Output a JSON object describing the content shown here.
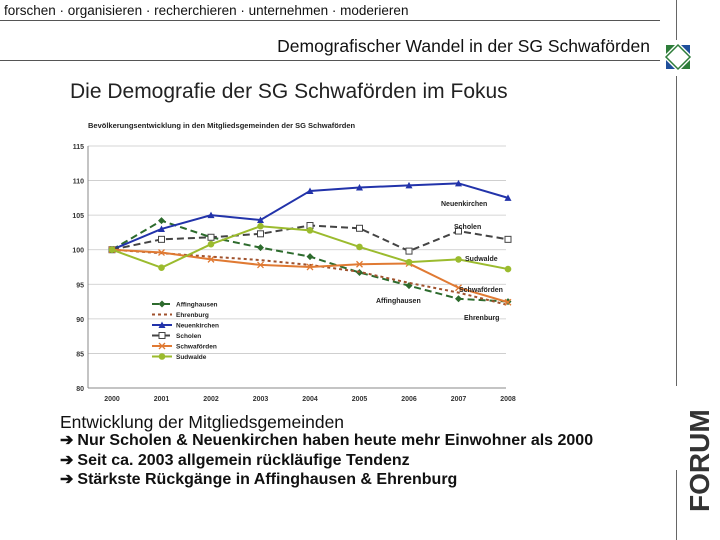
{
  "header": {
    "tagline": "forschen · organisieren · recherchieren · unternehmen · moderieren",
    "subtitle": "Demografischer Wandel in der SG Schwaförden"
  },
  "main": {
    "headline": "Die Demografie der SG Schwaförden im Fokus",
    "section_title": "Entwicklung der Mitgliedsgemeinden",
    "bullets": [
      "Nur Scholen & Neuenkirchen haben heute mehr Einwohner als 2000",
      "Seit ca. 2003 allgemein rückläufige Tendenz",
      "Stärkste Rückgänge in Affinghausen & Ehrenburg"
    ],
    "bullet_icon": "right-arrow-icon"
  },
  "logo": {
    "text": "FORUM",
    "colors": {
      "green": "#2e7d3a",
      "blue": "#1f4f9a",
      "gray": "#333333"
    }
  },
  "chart_data": {
    "type": "line",
    "title": "Bevölkerungsentwicklung in den Mitgliedsgemeinden der SG Schwaförden",
    "xlabel": "",
    "ylabel": "",
    "categories": [
      "2000",
      "2001",
      "2002",
      "2003",
      "2004",
      "2005",
      "2006",
      "2007",
      "2008"
    ],
    "ylim": [
      80,
      115
    ],
    "yticks": [
      "80",
      "85",
      "90",
      "95",
      "100",
      "105",
      "110",
      "115"
    ],
    "grid": true,
    "legend_position": "bottom-left",
    "series": [
      {
        "name": "Affinghausen",
        "color": "#2d6b2d",
        "dash": "long",
        "marker": "diamond",
        "values": [
          100,
          104.2,
          101.8,
          100.3,
          99.0,
          96.7,
          94.8,
          92.9,
          92.5
        ]
      },
      {
        "name": "Ehrenburg",
        "color": "#a0522d",
        "dash": "short",
        "marker": "none",
        "values": [
          100,
          99.5,
          99.0,
          98.5,
          97.8,
          96.8,
          95.2,
          93.8,
          92.0
        ]
      },
      {
        "name": "Neuenkirchen",
        "color": "#2233aa",
        "dash": "solid",
        "marker": "triangle",
        "values": [
          100,
          103.0,
          105.0,
          104.3,
          108.5,
          109.0,
          109.3,
          109.6,
          107.5
        ]
      },
      {
        "name": "Scholen",
        "color": "#444444",
        "dash": "long",
        "marker": "square",
        "values": [
          100,
          101.5,
          101.8,
          102.3,
          103.5,
          103.1,
          99.8,
          102.7,
          101.5
        ]
      },
      {
        "name": "Schwaförden",
        "color": "#e07a33",
        "dash": "solid",
        "marker": "x",
        "values": [
          100,
          99.6,
          98.6,
          97.8,
          97.5,
          97.9,
          98.0,
          94.5,
          92.4
        ]
      },
      {
        "name": "Sudwalde",
        "color": "#9bbb2e",
        "dash": "solid",
        "marker": "circle",
        "values": [
          100,
          97.4,
          100.8,
          103.4,
          102.8,
          100.4,
          98.2,
          98.6,
          97.2
        ]
      }
    ],
    "annotations": [
      "Neuenkirchen",
      "Scholen",
      "Sudwalde",
      "Schwaförden",
      "Affinghausen",
      "Ehrenburg"
    ]
  }
}
